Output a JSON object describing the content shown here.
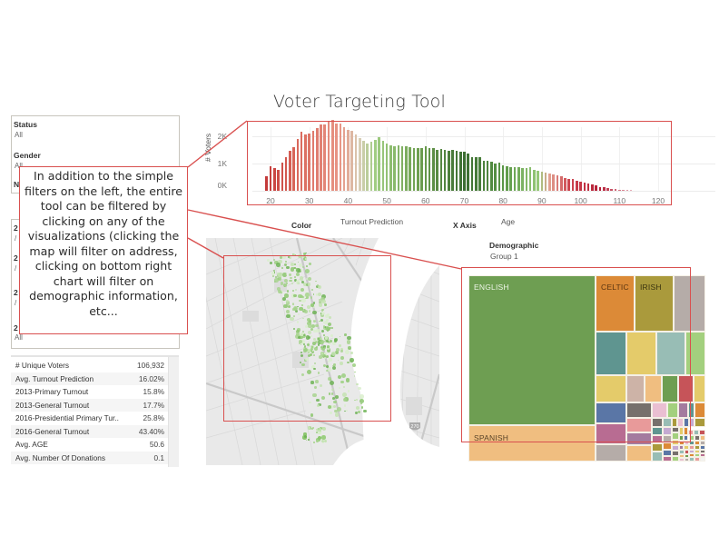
{
  "title": "Voter Targeting Tool",
  "filters": {
    "panel1": [
      {
        "label": "Status",
        "value": "All"
      },
      {
        "label": "Gender",
        "value": "All"
      },
      {
        "label": "N",
        "value": "/"
      }
    ],
    "panel2": [
      {
        "label": "2",
        "value": "/"
      },
      {
        "label": "2",
        "value": "/"
      },
      {
        "label": "2",
        "value": "/"
      },
      {
        "label": "2",
        "value": "All"
      }
    ]
  },
  "kpis": [
    {
      "label": "# Unique Voters",
      "value": "106,932"
    },
    {
      "label": "Avg. Turnout Prediction",
      "value": "16.02%"
    },
    {
      "label": "2013-Primary Turnout",
      "value": "15.8%"
    },
    {
      "label": "2013-General Turnout",
      "value": "17.7%"
    },
    {
      "label": "2016-Presidential Primary Tur..",
      "value": "25.8%"
    },
    {
      "label": "2016-General Turnout",
      "value": "43.40%"
    },
    {
      "label": "Avg. AGE",
      "value": "50.6"
    },
    {
      "label": "Avg. Number Of Donations",
      "value": "0.1"
    }
  ],
  "controls": {
    "color_label": "Color",
    "color_value": "Turnout Prediction",
    "xaxis_label": "X Axis",
    "xaxis_value": "Age",
    "demographic_label": "Demographic",
    "demographic_value": "Group 1"
  },
  "annotation": {
    "text": "In addition to the simple filters on the left, the entire tool can be filtered by clicking on any of the visualizations (clicking the map will filter on address, clicking on bottom right chart will filter on demographic information, etc..."
  },
  "map": {
    "highway_shield": "270"
  },
  "treemap": {
    "labels": {
      "english": "ENGLISH",
      "spanish": "SPANISH",
      "celtic": "CELTIC",
      "irish": "IRISH"
    },
    "colors": {
      "english": "#6e9e52",
      "spanish": "#f0be80",
      "celtic": "#dc8a37",
      "irish": "#aa9a3c",
      "gray": "#b5aca8"
    }
  },
  "accent_color": "#d9504f",
  "chart_data": {
    "type": "bar",
    "title": "",
    "xlabel": "Age",
    "ylabel": "# Voters",
    "color_by": "Turnout Prediction",
    "x_ticks": [
      20,
      30,
      40,
      50,
      60,
      70,
      80,
      90,
      100,
      110,
      120
    ],
    "y_ticks": [
      "0K",
      "1K",
      "2K"
    ],
    "ylim": [
      0,
      2600
    ],
    "xlim": [
      17,
      122
    ],
    "x": [
      19,
      20,
      21,
      22,
      23,
      24,
      25,
      26,
      27,
      28,
      29,
      30,
      31,
      32,
      33,
      34,
      35,
      36,
      37,
      38,
      39,
      40,
      41,
      42,
      43,
      44,
      45,
      46,
      47,
      48,
      49,
      50,
      51,
      52,
      53,
      54,
      55,
      56,
      57,
      58,
      59,
      60,
      61,
      62,
      63,
      64,
      65,
      66,
      67,
      68,
      69,
      70,
      71,
      72,
      73,
      74,
      75,
      76,
      77,
      78,
      79,
      80,
      81,
      82,
      83,
      84,
      85,
      86,
      87,
      88,
      89,
      90,
      91,
      92,
      93,
      94,
      95,
      96,
      97,
      98,
      99,
      100,
      101,
      102,
      103,
      104,
      105,
      106,
      107,
      108,
      109,
      110,
      111,
      112,
      113
    ],
    "values": [
      550,
      900,
      820,
      780,
      1050,
      1220,
      1480,
      1600,
      1900,
      2180,
      2060,
      2100,
      2200,
      2300,
      2420,
      2440,
      2520,
      2600,
      2480,
      2480,
      2350,
      2250,
      2200,
      2080,
      1950,
      1850,
      1750,
      1800,
      1880,
      1980,
      1840,
      1720,
      1680,
      1650,
      1680,
      1620,
      1620,
      1600,
      1580,
      1560,
      1580,
      1630,
      1560,
      1560,
      1500,
      1550,
      1510,
      1480,
      1490,
      1460,
      1420,
      1440,
      1360,
      1240,
      1230,
      1230,
      1100,
      1090,
      1060,
      1000,
      1020,
      940,
      900,
      880,
      860,
      860,
      850,
      820,
      860,
      780,
      720,
      700,
      680,
      640,
      600,
      560,
      520,
      480,
      440,
      420,
      380,
      330,
      300,
      260,
      220,
      190,
      150,
      120,
      100,
      80,
      60,
      40,
      30,
      20,
      15
    ],
    "legend": "Red (low turnout) → Green (high turnout) diverging color by Turnout Prediction"
  }
}
